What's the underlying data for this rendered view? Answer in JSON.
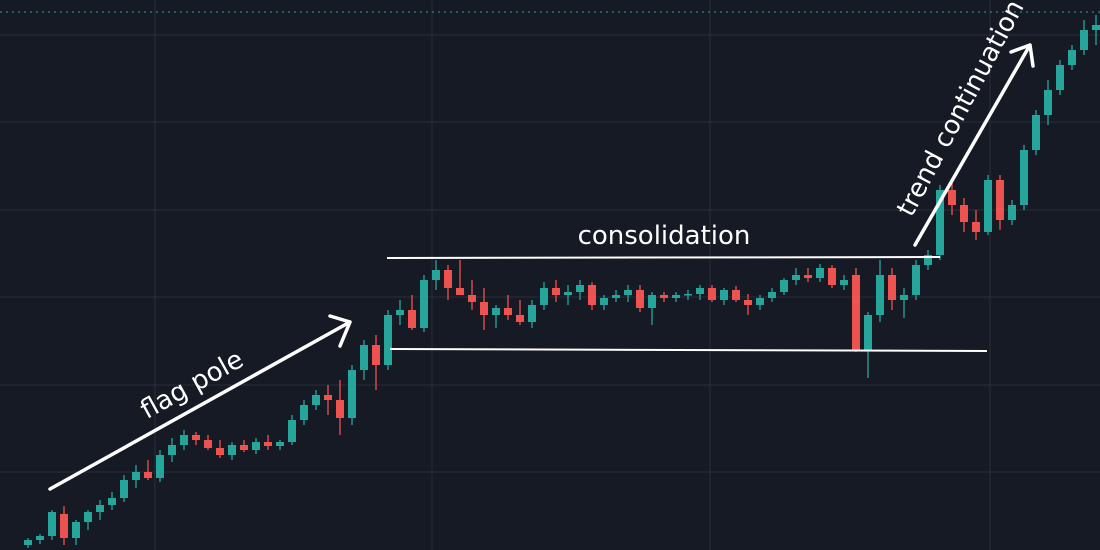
{
  "chart_data": {
    "type": "candlestick",
    "open": [
      5,
      10,
      14,
      36,
      12,
      28,
      38,
      45,
      52,
      70,
      78,
      72,
      95,
      105,
      115,
      110,
      102,
      95,
      105,
      100,
      108,
      104,
      108,
      130,
      145,
      155,
      150,
      132,
      180,
      205,
      185,
      235,
      240,
      222,
      270,
      280,
      262,
      255,
      248,
      235,
      242,
      235,
      228,
      245,
      262,
      255,
      258,
      265,
      245,
      252,
      255,
      260,
      242,
      255,
      252,
      255,
      256,
      262,
      250,
      260,
      250,
      245,
      252,
      258,
      270,
      275,
      272,
      282,
      265,
      275,
      200,
      235,
      275,
      250,
      255,
      285,
      295,
      360,
      345,
      328,
      318,
      370,
      330,
      345,
      400,
      435,
      460,
      485,
      500,
      520
    ],
    "high": [
      12,
      16,
      40,
      44,
      30,
      40,
      50,
      58,
      75,
      85,
      90,
      100,
      112,
      120,
      118,
      115,
      110,
      108,
      110,
      112,
      115,
      110,
      135,
      150,
      160,
      165,
      170,
      185,
      210,
      215,
      240,
      250,
      255,
      275,
      290,
      285,
      290,
      270,
      262,
      245,
      255,
      250,
      250,
      268,
      270,
      265,
      270,
      268,
      255,
      260,
      265,
      265,
      258,
      258,
      258,
      260,
      265,
      265,
      262,
      264,
      256,
      255,
      262,
      272,
      282,
      282,
      286,
      285,
      275,
      282,
      238,
      290,
      282,
      262,
      290,
      300,
      365,
      368,
      352,
      340,
      375,
      375,
      350,
      405,
      440,
      470,
      490,
      505,
      530,
      535
    ],
    "low": [
      2,
      6,
      10,
      5,
      5,
      20,
      30,
      40,
      48,
      62,
      70,
      68,
      88,
      100,
      105,
      100,
      92,
      90,
      98,
      96,
      100,
      100,
      105,
      125,
      140,
      135,
      115,
      125,
      170,
      160,
      180,
      225,
      220,
      218,
      260,
      250,
      255,
      240,
      220,
      222,
      230,
      225,
      222,
      240,
      248,
      245,
      250,
      240,
      240,
      248,
      248,
      238,
      225,
      248,
      248,
      250,
      250,
      248,
      245,
      248,
      235,
      240,
      248,
      255,
      265,
      268,
      268,
      262,
      260,
      198,
      172,
      228,
      240,
      232,
      250,
      280,
      290,
      335,
      318,
      310,
      315,
      320,
      325,
      340,
      395,
      425,
      455,
      480,
      495,
      505
    ],
    "close": [
      10,
      14,
      38,
      12,
      28,
      38,
      45,
      52,
      70,
      78,
      72,
      95,
      105,
      115,
      110,
      102,
      95,
      105,
      100,
      108,
      104,
      108,
      130,
      145,
      155,
      150,
      132,
      180,
      205,
      185,
      235,
      240,
      222,
      270,
      280,
      262,
      255,
      248,
      235,
      242,
      235,
      228,
      245,
      262,
      255,
      258,
      265,
      245,
      252,
      255,
      260,
      242,
      255,
      252,
      255,
      256,
      262,
      250,
      260,
      250,
      245,
      252,
      258,
      270,
      275,
      272,
      282,
      265,
      270,
      200,
      235,
      275,
      250,
      255,
      285,
      295,
      360,
      345,
      328,
      318,
      370,
      330,
      345,
      400,
      435,
      460,
      485,
      500,
      520,
      525
    ],
    "up_color": "#26a69a",
    "down_color": "#ef5350",
    "ylim": [
      0,
      550
    ],
    "annotations": [
      "flag pole",
      "consolidation",
      "trend continuation"
    ]
  }
}
